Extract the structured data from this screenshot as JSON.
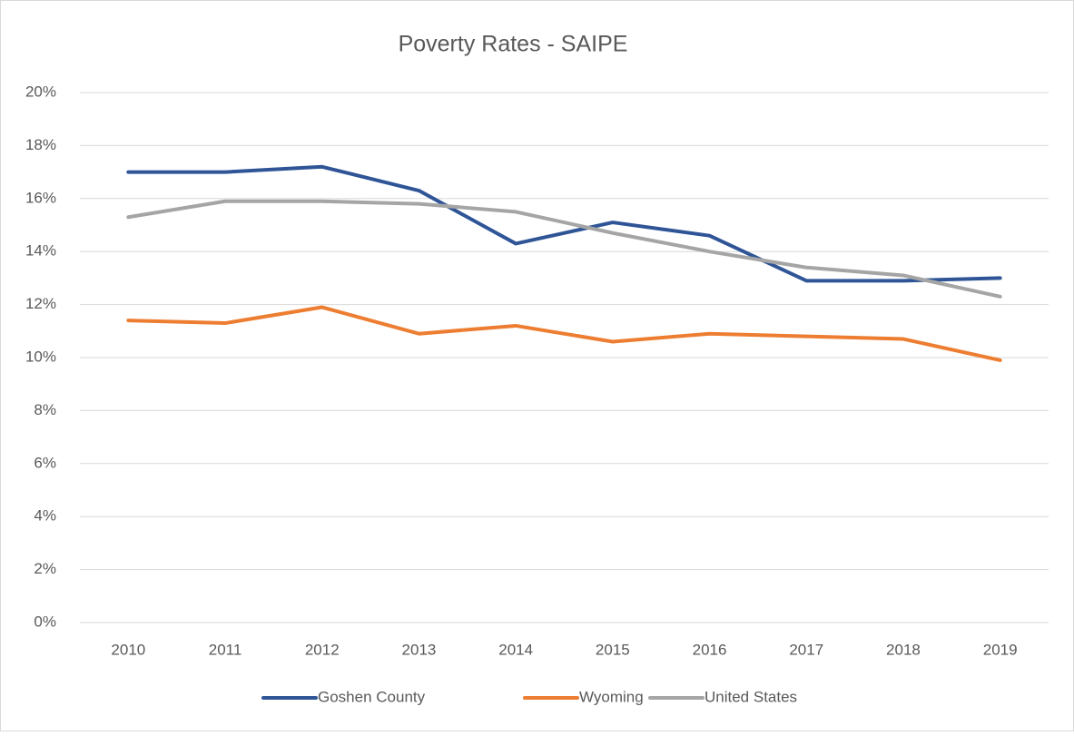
{
  "chart_data": {
    "type": "line",
    "title": "Poverty Rates - SAIPE",
    "categories": [
      "2010",
      "2011",
      "2012",
      "2013",
      "2014",
      "2015",
      "2016",
      "2017",
      "2018",
      "2019"
    ],
    "series": [
      {
        "name": "Goshen County",
        "color": "#2f5597",
        "values": [
          17.0,
          17.0,
          17.2,
          16.3,
          14.3,
          15.1,
          14.6,
          12.9,
          12.9,
          13.0
        ]
      },
      {
        "name": "Wyoming",
        "color": "#ed7d31",
        "values": [
          11.4,
          11.3,
          11.9,
          10.9,
          11.2,
          10.6,
          10.9,
          10.8,
          10.7,
          9.9
        ]
      },
      {
        "name": "United States",
        "color": "#a5a5a5",
        "values": [
          15.3,
          15.9,
          15.9,
          15.8,
          15.5,
          14.7,
          14.0,
          13.4,
          13.1,
          12.3
        ]
      }
    ],
    "ylim": [
      0,
      20
    ],
    "yticks": [
      {
        "value": 0,
        "label": "0%"
      },
      {
        "value": 2,
        "label": "2%"
      },
      {
        "value": 4,
        "label": "4%"
      },
      {
        "value": 6,
        "label": "6%"
      },
      {
        "value": 8,
        "label": "8%"
      },
      {
        "value": 10,
        "label": "10%"
      },
      {
        "value": 12,
        "label": "12%"
      },
      {
        "value": 14,
        "label": "14%"
      },
      {
        "value": 16,
        "label": "16%"
      },
      {
        "value": 18,
        "label": "18%"
      },
      {
        "value": 20,
        "label": "20%"
      }
    ],
    "grid": true,
    "legend": "bottom"
  }
}
